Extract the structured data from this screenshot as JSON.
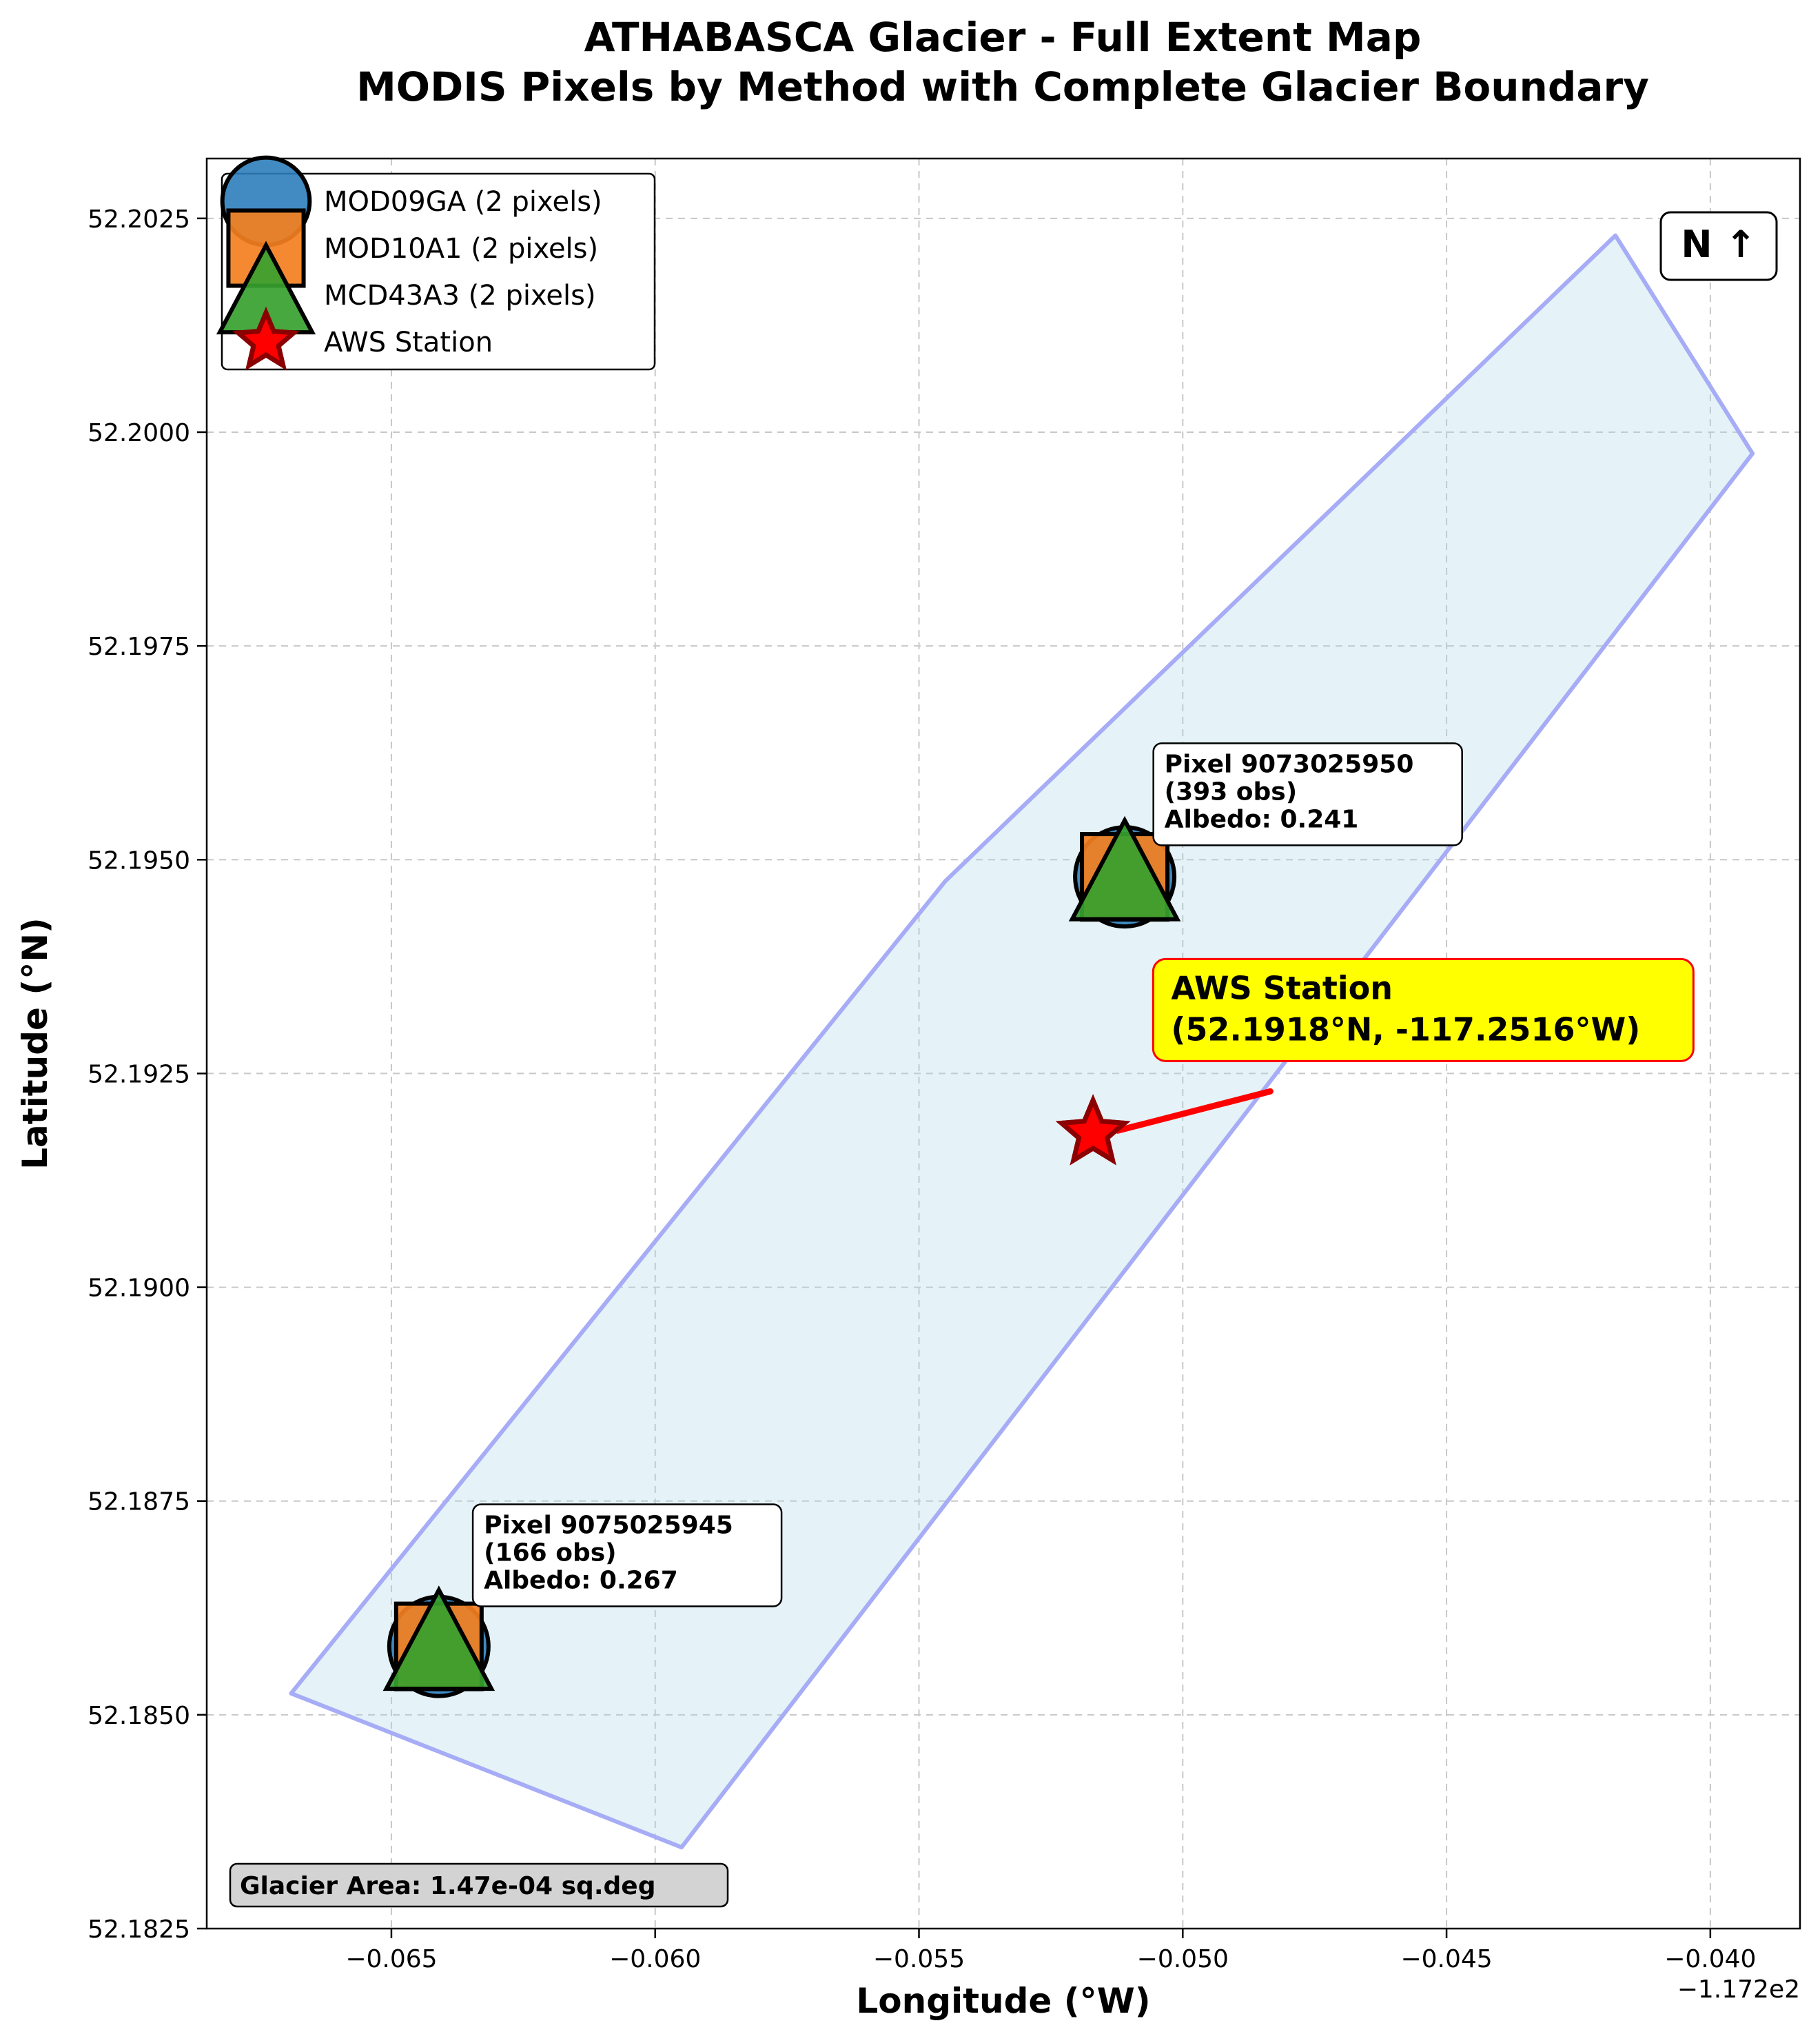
{
  "chart_data": {
    "type": "scatter",
    "title": "ATHABASCA Glacier - Full Extent Map",
    "subtitle": "MODIS Pixels by Method with Complete Glacier Boundary",
    "xlabel": "Longitude (°W)",
    "ylabel": "Latitude (°N)",
    "x_offset_label": "−1.172e2",
    "xlim": [
      -0.0685,
      -0.0383
    ],
    "ylim": [
      52.1825,
      52.2032
    ],
    "xticks": [
      -0.065,
      -0.06,
      -0.055,
      -0.05,
      -0.045,
      -0.04
    ],
    "xtick_labels": [
      "−0.065",
      "−0.060",
      "−0.055",
      "−0.050",
      "−0.045",
      "−0.040"
    ],
    "yticks": [
      52.1825,
      52.185,
      52.1875,
      52.19,
      52.1925,
      52.195,
      52.1975,
      52.2,
      52.2025
    ],
    "ytick_labels": [
      "52.1825",
      "52.1850",
      "52.1875",
      "52.1900",
      "52.1925",
      "52.1950",
      "52.1975",
      "52.2000",
      "52.2025"
    ],
    "grid": true,
    "legend_position": "top-left",
    "boundary": {
      "color": "#add8e6",
      "edge_color": "#a6acf6",
      "points": [
        [
          -0.0669,
          52.18525
        ],
        [
          -0.0595,
          52.18345
        ],
        [
          -0.0392,
          52.19975
        ],
        [
          -0.0418,
          52.2023
        ],
        [
          -0.0545,
          52.19475
        ]
      ]
    },
    "series": [
      {
        "name": "MOD09GA (2 pixels)",
        "marker": "circle",
        "color": "#2e7ebb",
        "x": [
          -0.0511,
          -0.0641
        ],
        "y": [
          52.1948,
          52.1858
        ]
      },
      {
        "name": "MOD10A1 (2 pixels)",
        "marker": "square",
        "color": "#f37f1f",
        "x": [
          -0.0511,
          -0.0641
        ],
        "y": [
          52.1948,
          52.1858
        ]
      },
      {
        "name": "MCD43A3 (2 pixels)",
        "marker": "triangle",
        "color": "#36a12e",
        "x": [
          -0.0511,
          -0.0641
        ],
        "y": [
          52.1948,
          52.1858
        ]
      },
      {
        "name": "AWS Station",
        "marker": "star",
        "color": "#ff0000",
        "x": [
          -0.0517
        ],
        "y": [
          52.1918
        ]
      }
    ],
    "pixel_annotations": [
      {
        "lines": [
          "Pixel 9073025950",
          "(393 obs)",
          "Albedo: 0.241"
        ],
        "x": -0.0504,
        "y": 52.1962
      },
      {
        "lines": [
          "Pixel 9075025945",
          "(166 obs)",
          "Albedo: 0.267"
        ],
        "x": -0.0633,
        "y": 52.1873
      }
    ],
    "station_annotation": {
      "lines": [
        "AWS Station",
        "(52.1918°N, -117.2516°W)"
      ],
      "x": -0.0503,
      "y": 52.1935,
      "arrow_to": [
        -0.0517,
        52.1918
      ],
      "fill": "#ffff00",
      "edge": "#ff0000"
    },
    "north_arrow": "N ↑",
    "area_label": "Glacier Area: 1.47e-04 sq.deg"
  }
}
